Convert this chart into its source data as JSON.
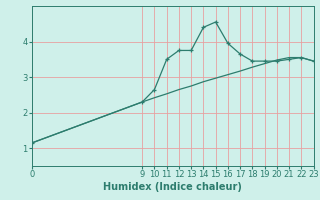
{
  "xlabel": "Humidex (Indice chaleur)",
  "bg_color": "#cff0ea",
  "line_color": "#2d7d6e",
  "grid_color": "#e8a0a0",
  "curve1_x": [
    0,
    9,
    10,
    11,
    12,
    13,
    14,
    15,
    16,
    17,
    18,
    19,
    20,
    21,
    22,
    23
  ],
  "curve1_y": [
    1.15,
    2.3,
    2.65,
    3.5,
    3.75,
    3.75,
    4.4,
    4.55,
    3.95,
    3.65,
    3.45,
    3.45,
    3.45,
    3.5,
    3.55,
    3.45
  ],
  "curve2_x": [
    0,
    9,
    10,
    11,
    12,
    13,
    14,
    15,
    16,
    17,
    18,
    19,
    20,
    21,
    22,
    23
  ],
  "curve2_y": [
    1.15,
    2.3,
    2.42,
    2.53,
    2.65,
    2.75,
    2.87,
    2.97,
    3.07,
    3.17,
    3.28,
    3.38,
    3.48,
    3.55,
    3.55,
    3.45
  ],
  "xlim": [
    0,
    23
  ],
  "ylim": [
    0.5,
    5.0
  ],
  "xticks": [
    0,
    9,
    10,
    11,
    12,
    13,
    14,
    15,
    16,
    17,
    18,
    19,
    20,
    21,
    22,
    23
  ],
  "yticks": [
    1,
    2,
    3,
    4
  ],
  "label_fontsize": 7,
  "tick_fontsize": 6
}
